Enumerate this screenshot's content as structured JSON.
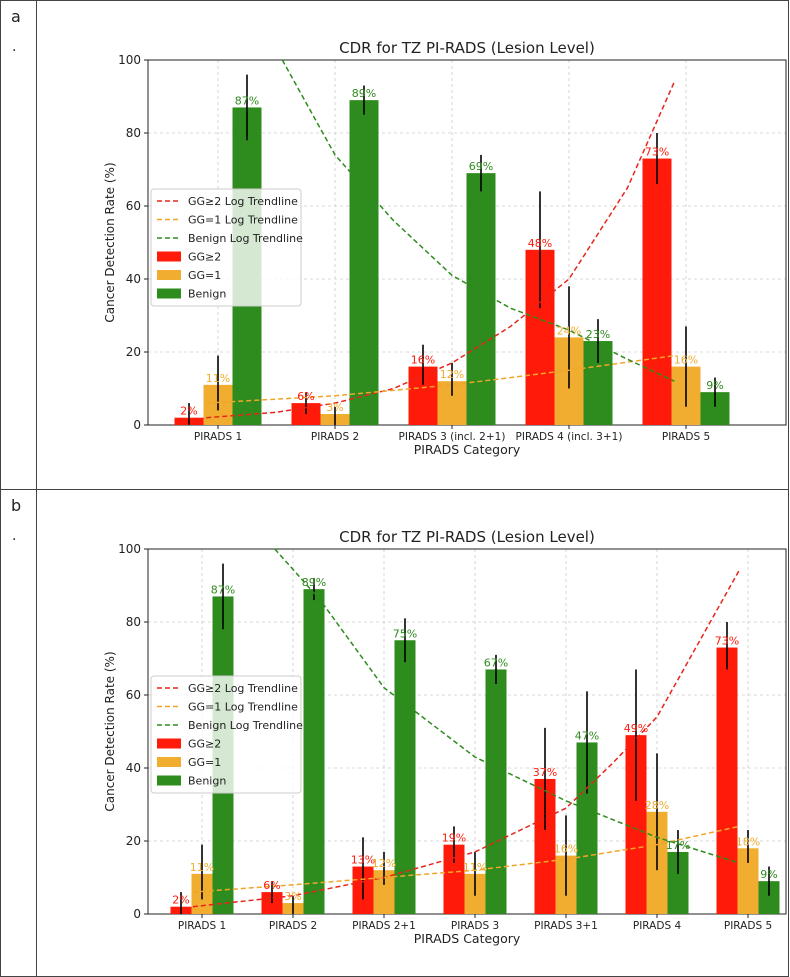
{
  "panels": [
    {
      "label": "a",
      "marker": "·",
      "chart_data": {
        "type": "bar",
        "title": "CDR for TZ PI-RADS (Lesion Level)",
        "xlabel": "PIRADS Category",
        "ylabel": "Cancer Detection Rate (%)",
        "ylim": [
          0,
          100
        ],
        "yticks": [
          0,
          20,
          40,
          60,
          80,
          100
        ],
        "grid": true,
        "legend_position": "center-left",
        "categories": [
          "PIRADS 1",
          "PIRADS 2",
          "PIRADS 3 (incl. 2+1)",
          "PIRADS 4 (incl. 3+1)",
          "PIRADS 5"
        ],
        "series": [
          {
            "name": "GG≥2",
            "color": "#ff1a0a",
            "values": [
              2,
              6,
              16,
              48,
              73
            ],
            "labels": [
              "2%",
              "6%",
              "16%",
              "48%",
              "73%"
            ],
            "err_low": [
              0,
              3,
              11,
              32,
              66
            ],
            "err_high": [
              6,
              9,
              22,
              64,
              80
            ]
          },
          {
            "name": "GG=1",
            "color": "#f0ad30",
            "values": [
              11,
              3,
              12,
              24,
              16
            ],
            "labels": [
              "11%",
              "3%",
              "12%",
              "24%",
              "16%"
            ],
            "err_low": [
              4,
              0,
              8,
              10,
              5
            ],
            "err_high": [
              19,
              5,
              17,
              38,
              27
            ]
          },
          {
            "name": "Benign",
            "color": "#2e8b1e",
            "values": [
              87,
              89,
              69,
              23,
              9
            ],
            "labels": [
              "87%",
              "89%",
              "69%",
              "23%",
              "9%"
            ],
            "err_low": [
              78,
              85,
              64,
              17,
              5
            ],
            "err_high": [
              96,
              93,
              74,
              29,
              13
            ]
          }
        ],
        "trendlines": [
          {
            "name": "GG≥2 Log Trendline",
            "color": "#e8251b",
            "x": [
              0.9,
              1.5,
              2,
              2.5,
              3,
              3.5,
              4,
              4.5,
              4.9
            ],
            "y": [
              2,
              3.5,
              6,
              10,
              17,
              27,
              40,
              65,
              94
            ]
          },
          {
            "name": "GG=1 Log Trendline",
            "color": "#f0a528",
            "x": [
              0.9,
              2,
              3,
              4,
              4.9
            ],
            "y": [
              6,
              8,
              11,
              15,
              19
            ]
          },
          {
            "name": "Benign Log Trendline",
            "color": "#2e8b1e",
            "x": [
              1.55,
              2,
              2.5,
              3,
              3.5,
              4,
              4.5,
              4.9
            ],
            "y": [
              100,
              74,
              56,
              41,
              32,
              26,
              18,
              12
            ]
          }
        ],
        "legend_entries": [
          "GG≥2 Log Trendline",
          "GG=1 Log Trendline",
          "Benign Log Trendline",
          "GG≥2",
          "GG=1",
          "Benign"
        ]
      }
    },
    {
      "label": "b",
      "marker": "·",
      "chart_data": {
        "type": "bar",
        "title": "CDR for TZ PI-RADS (Lesion Level)",
        "xlabel": "PIRADS Category",
        "ylabel": "Cancer Detection Rate (%)",
        "ylim": [
          0,
          100
        ],
        "yticks": [
          0,
          20,
          40,
          60,
          80,
          100
        ],
        "grid": true,
        "legend_position": "center-left",
        "categories": [
          "PIRADS 1",
          "PIRADS 2",
          "PIRADS 2+1",
          "PIRADS 3",
          "PIRADS 3+1",
          "PIRADS 4",
          "PIRADS 5"
        ],
        "series": [
          {
            "name": "GG≥2",
            "color": "#ff1a0a",
            "values": [
              2,
              6,
              13,
              19,
              37,
              49,
              73
            ],
            "labels": [
              "2%",
              "6%",
              "13%",
              "19%",
              "37%",
              "49%",
              "73%"
            ],
            "err_low": [
              0,
              3,
              4,
              14,
              23,
              31,
              67
            ],
            "err_high": [
              6,
              9,
              21,
              24,
              51,
              67,
              80
            ]
          },
          {
            "name": "GG=1",
            "color": "#f0ad30",
            "values": [
              11,
              3,
              12,
              11,
              16,
              28,
              18
            ],
            "labels": [
              "11%",
              "3%",
              "12%",
              "11%",
              "16%",
              "28%",
              "18%"
            ],
            "err_low": [
              4,
              0,
              8,
              5,
              5,
              12,
              14
            ],
            "err_high": [
              19,
              5,
              17,
              17,
              27,
              44,
              23
            ]
          },
          {
            "name": "Benign",
            "color": "#2e8b1e",
            "values": [
              87,
              89,
              75,
              67,
              47,
              17,
              9
            ],
            "labels": [
              "87%",
              "89%",
              "75%",
              "67%",
              "47%",
              "17%",
              "9%"
            ],
            "err_low": [
              78,
              86,
              69,
              63,
              33,
              11,
              5
            ],
            "err_high": [
              96,
              92,
              81,
              71,
              61,
              23,
              13
            ]
          }
        ],
        "trendlines": [
          {
            "name": "GG≥2 Log Trendline",
            "color": "#e8251b",
            "x": [
              0.9,
              2,
              3,
              4,
              5,
              5.5,
              6,
              6.9
            ],
            "y": [
              2,
              5,
              10,
              17,
              29,
              41,
              54,
              94
            ]
          },
          {
            "name": "GG=1 Log Trendline",
            "color": "#f0a528",
            "x": [
              0.9,
              2,
              3,
              4,
              5,
              6,
              6.9
            ],
            "y": [
              6,
              8,
              10,
              12,
              15,
              19,
              24
            ]
          },
          {
            "name": "Benign Log Trendline",
            "color": "#2e8b1e",
            "x": [
              1.8,
              2.3,
              3,
              4,
              5,
              6,
              6.9
            ],
            "y": [
              100,
              86,
              62,
              43,
              31,
              21,
              14
            ]
          }
        ],
        "legend_entries": [
          "GG≥2 Log Trendline",
          "GG=1 Log Trendline",
          "Benign Log Trendline",
          "GG≥2",
          "GG=1",
          "Benign"
        ]
      }
    }
  ]
}
